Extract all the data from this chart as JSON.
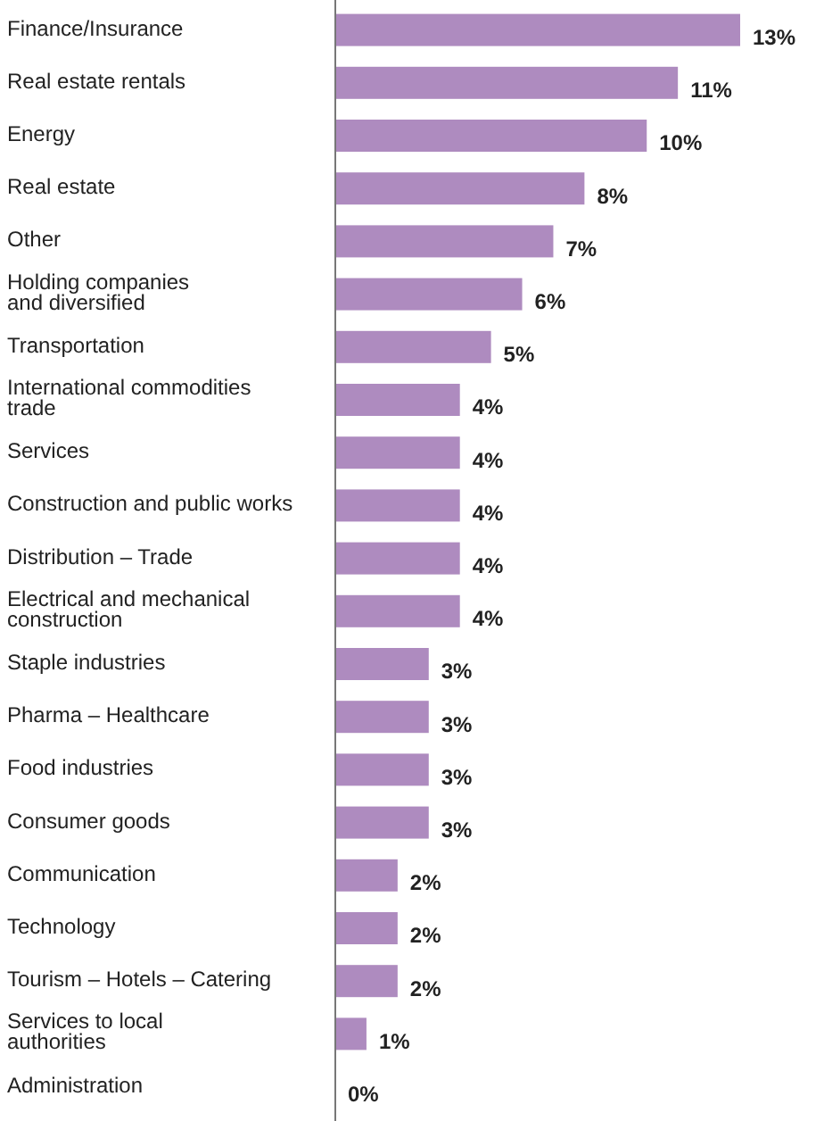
{
  "chart_data": {
    "type": "bar",
    "orientation": "horizontal",
    "color": "#ae8bbf",
    "categories": [
      "Finance/Insurance",
      "Real estate rentals",
      "Energy",
      "Real estate",
      "Other",
      "Holding companies\nand diversified",
      "Transportation",
      "International commodities\ntrade",
      "Services",
      "Construction and public works",
      "Distribution – Trade",
      "Electrical and mechanical\nconstruction",
      "Staple industries",
      "Pharma – Healthcare",
      "Food industries",
      "Consumer goods",
      "Communication",
      "Technology",
      "Tourism – Hotels – Catering",
      "Services to local\nauthorities",
      "Administration"
    ],
    "values": [
      13,
      11,
      10,
      8,
      7,
      6,
      5,
      4,
      4,
      4,
      4,
      4,
      3,
      3,
      3,
      3,
      2,
      2,
      2,
      1,
      0
    ],
    "value_labels": [
      "13%",
      "11%",
      "10%",
      "8%",
      "7%",
      "6%",
      "5%",
      "4%",
      "4%",
      "4%",
      "4%",
      "4%",
      "3%",
      "3%",
      "3%",
      "3%",
      "2%",
      "2%",
      "2%",
      "1%",
      "0%"
    ]
  }
}
